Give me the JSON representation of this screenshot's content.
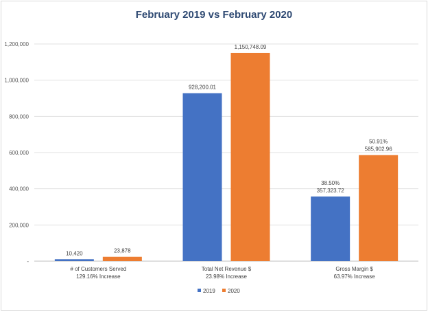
{
  "chart_data": {
    "type": "bar",
    "title": "February 2019 vs February 2020",
    "categories": [
      [
        "# of Customers Served",
        "129.16% Increase"
      ],
      [
        "Total Net Revenue $",
        "23.98% Increase"
      ],
      [
        "Gross Margin $",
        "63.97% Increase"
      ]
    ],
    "series": [
      {
        "name": "2019",
        "color": "#4472c4",
        "values": [
          10420,
          928200.01,
          357323.72
        ],
        "labels": [
          [
            "10,420"
          ],
          [
            "928,200.01"
          ],
          [
            "38.50%",
            "357,323.72"
          ]
        ]
      },
      {
        "name": "2020",
        "color": "#ed7d31",
        "values": [
          23878,
          1150748.09,
          585902.96
        ],
        "labels": [
          [
            "23,878"
          ],
          [
            "1,150,748.09"
          ],
          [
            "50.91%",
            "585,902.96"
          ]
        ]
      }
    ],
    "ylim": [
      0,
      1200000
    ],
    "yticks": [
      0,
      200000,
      400000,
      600000,
      800000,
      1000000,
      1200000
    ],
    "ytick_labels": [
      "-",
      "200,000",
      "400,000",
      "600,000",
      "800,000",
      "1,000,000",
      "1,200,000"
    ],
    "grid": true,
    "legend_position": "bottom"
  }
}
